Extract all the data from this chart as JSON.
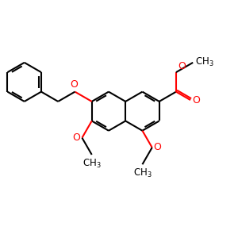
{
  "bg_color": "#ffffff",
  "bond_color": "#000000",
  "heteroatom_color": "#ff0000",
  "line_width": 1.5,
  "dpi": 100,
  "figsize": [
    3.0,
    3.0
  ],
  "xlim": [
    0,
    12
  ],
  "ylim": [
    0,
    12
  ]
}
